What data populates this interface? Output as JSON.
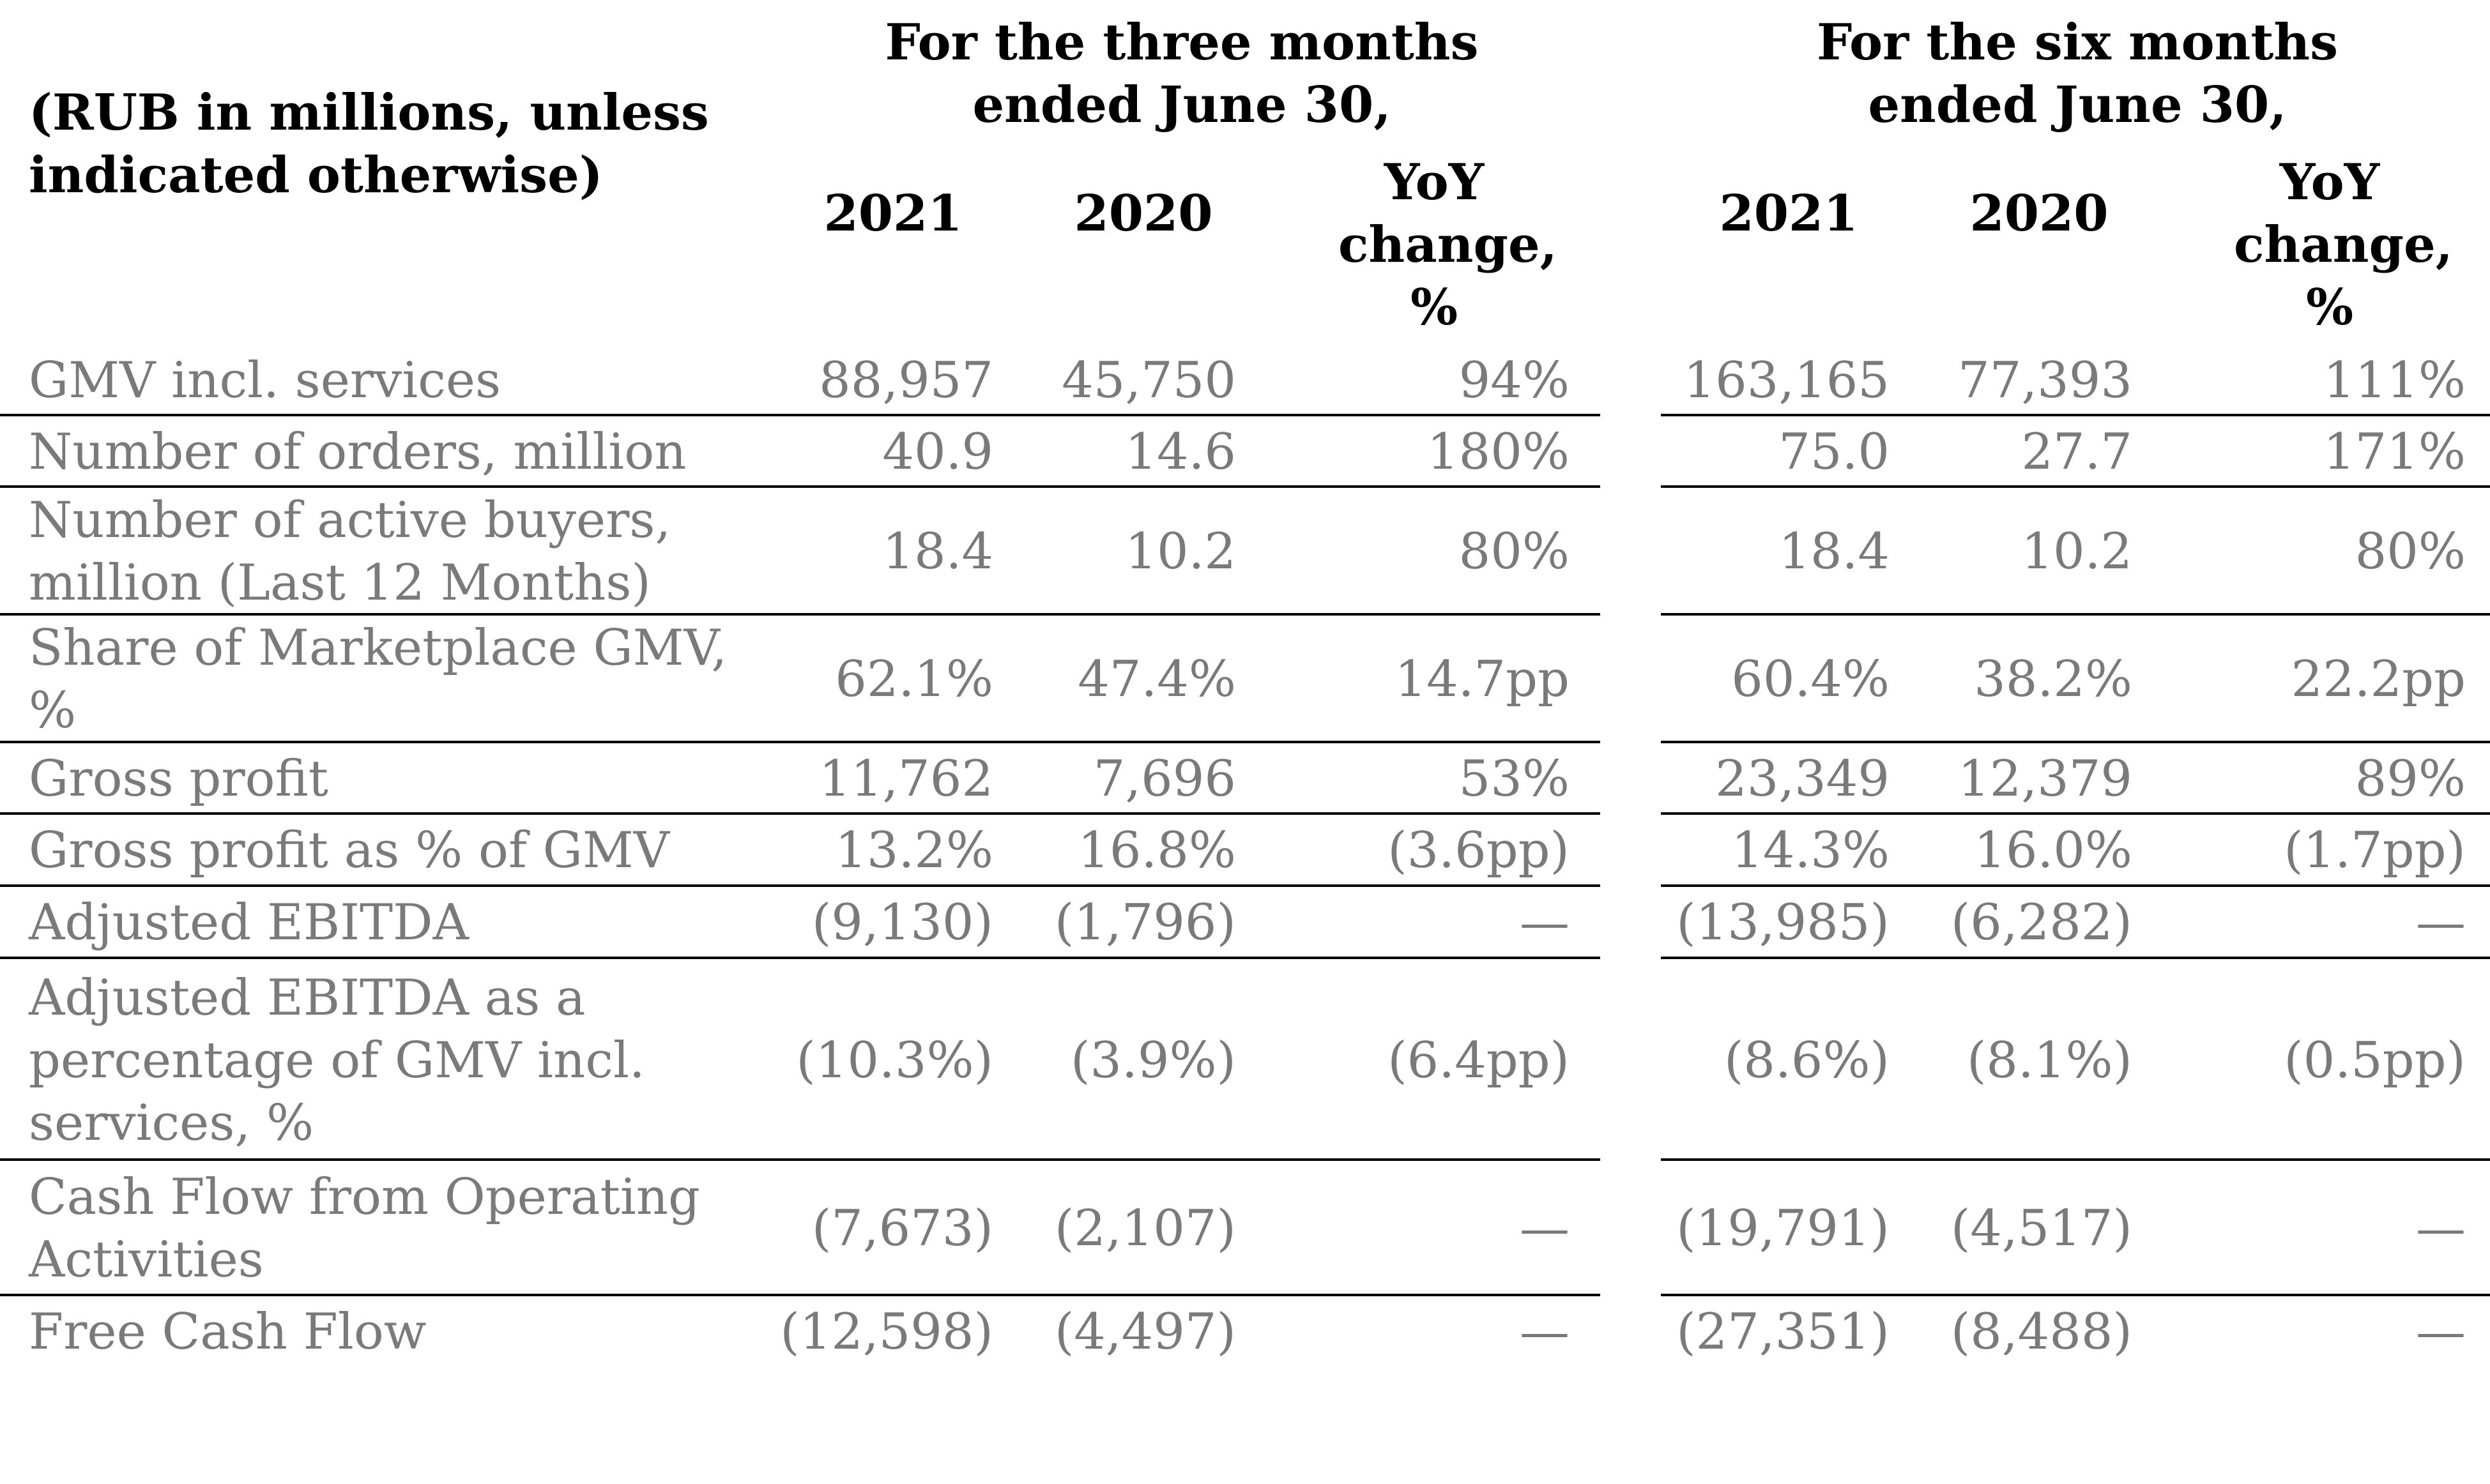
{
  "header": {
    "units": "(RUB in millions, unless indicated otherwise)",
    "period_three": "For the three months ended June 30,",
    "period_six": "For the six months ended June 30,",
    "col_2021": "2021",
    "col_2020": "2020",
    "col_yoy": "YoY change, %"
  },
  "rows": [
    {
      "label": "GMV incl. services",
      "q21": "88,957",
      "q20": "45,750",
      "qyoy": "94%",
      "h21": "163,165",
      "h20": "77,393",
      "hyoy": "111%"
    },
    {
      "label": "Number of orders, million",
      "q21": "40.9",
      "q20": "14.6",
      "qyoy": "180%",
      "h21": "75.0",
      "h20": "27.7",
      "hyoy": "171%"
    },
    {
      "label": "Number of active buyers, million (Last 12 Months)",
      "q21": "18.4",
      "q20": "10.2",
      "qyoy": "80%",
      "h21": "18.4",
      "h20": "10.2",
      "hyoy": "80%"
    },
    {
      "label": "Share of Marketplace GMV, %",
      "q21": "62.1%",
      "q20": "47.4%",
      "qyoy": "14.7pp",
      "h21": "60.4%",
      "h20": "38.2%",
      "hyoy": "22.2pp"
    },
    {
      "label": "Gross profit",
      "q21": "11,762",
      "q20": "7,696",
      "qyoy": "53%",
      "h21": "23,349",
      "h20": "12,379",
      "hyoy": "89%"
    },
    {
      "label": "Gross profit as % of GMV",
      "q21": "13.2%",
      "q20": "16.8%",
      "qyoy": "(3.6pp)",
      "h21": "14.3%",
      "h20": "16.0%",
      "hyoy": "(1.7pp)"
    },
    {
      "label": "Adjusted EBITDA",
      "q21": "(9,130)",
      "q20": "(1,796)",
      "qyoy": "—",
      "h21": "(13,985)",
      "h20": "(6,282)",
      "hyoy": "—"
    },
    {
      "label": "Adjusted EBITDA as a percentage of GMV incl. services, %",
      "q21": "(10.3%)",
      "q20": "(3.9%)",
      "qyoy": "(6.4pp)",
      "h21": "(8.6%)",
      "h20": "(8.1%)",
      "hyoy": "(0.5pp)"
    },
    {
      "label": "Cash Flow from Operating Activities",
      "q21": "(7,673)",
      "q20": "(2,107)",
      "qyoy": "—",
      "h21": "(19,791)",
      "h20": "(4,517)",
      "hyoy": "—"
    },
    {
      "label": "Free Cash Flow",
      "q21": "(12,598)",
      "q20": "(4,497)",
      "qyoy": "—",
      "h21": "(27,351)",
      "h20": "(8,488)",
      "hyoy": "—"
    }
  ]
}
